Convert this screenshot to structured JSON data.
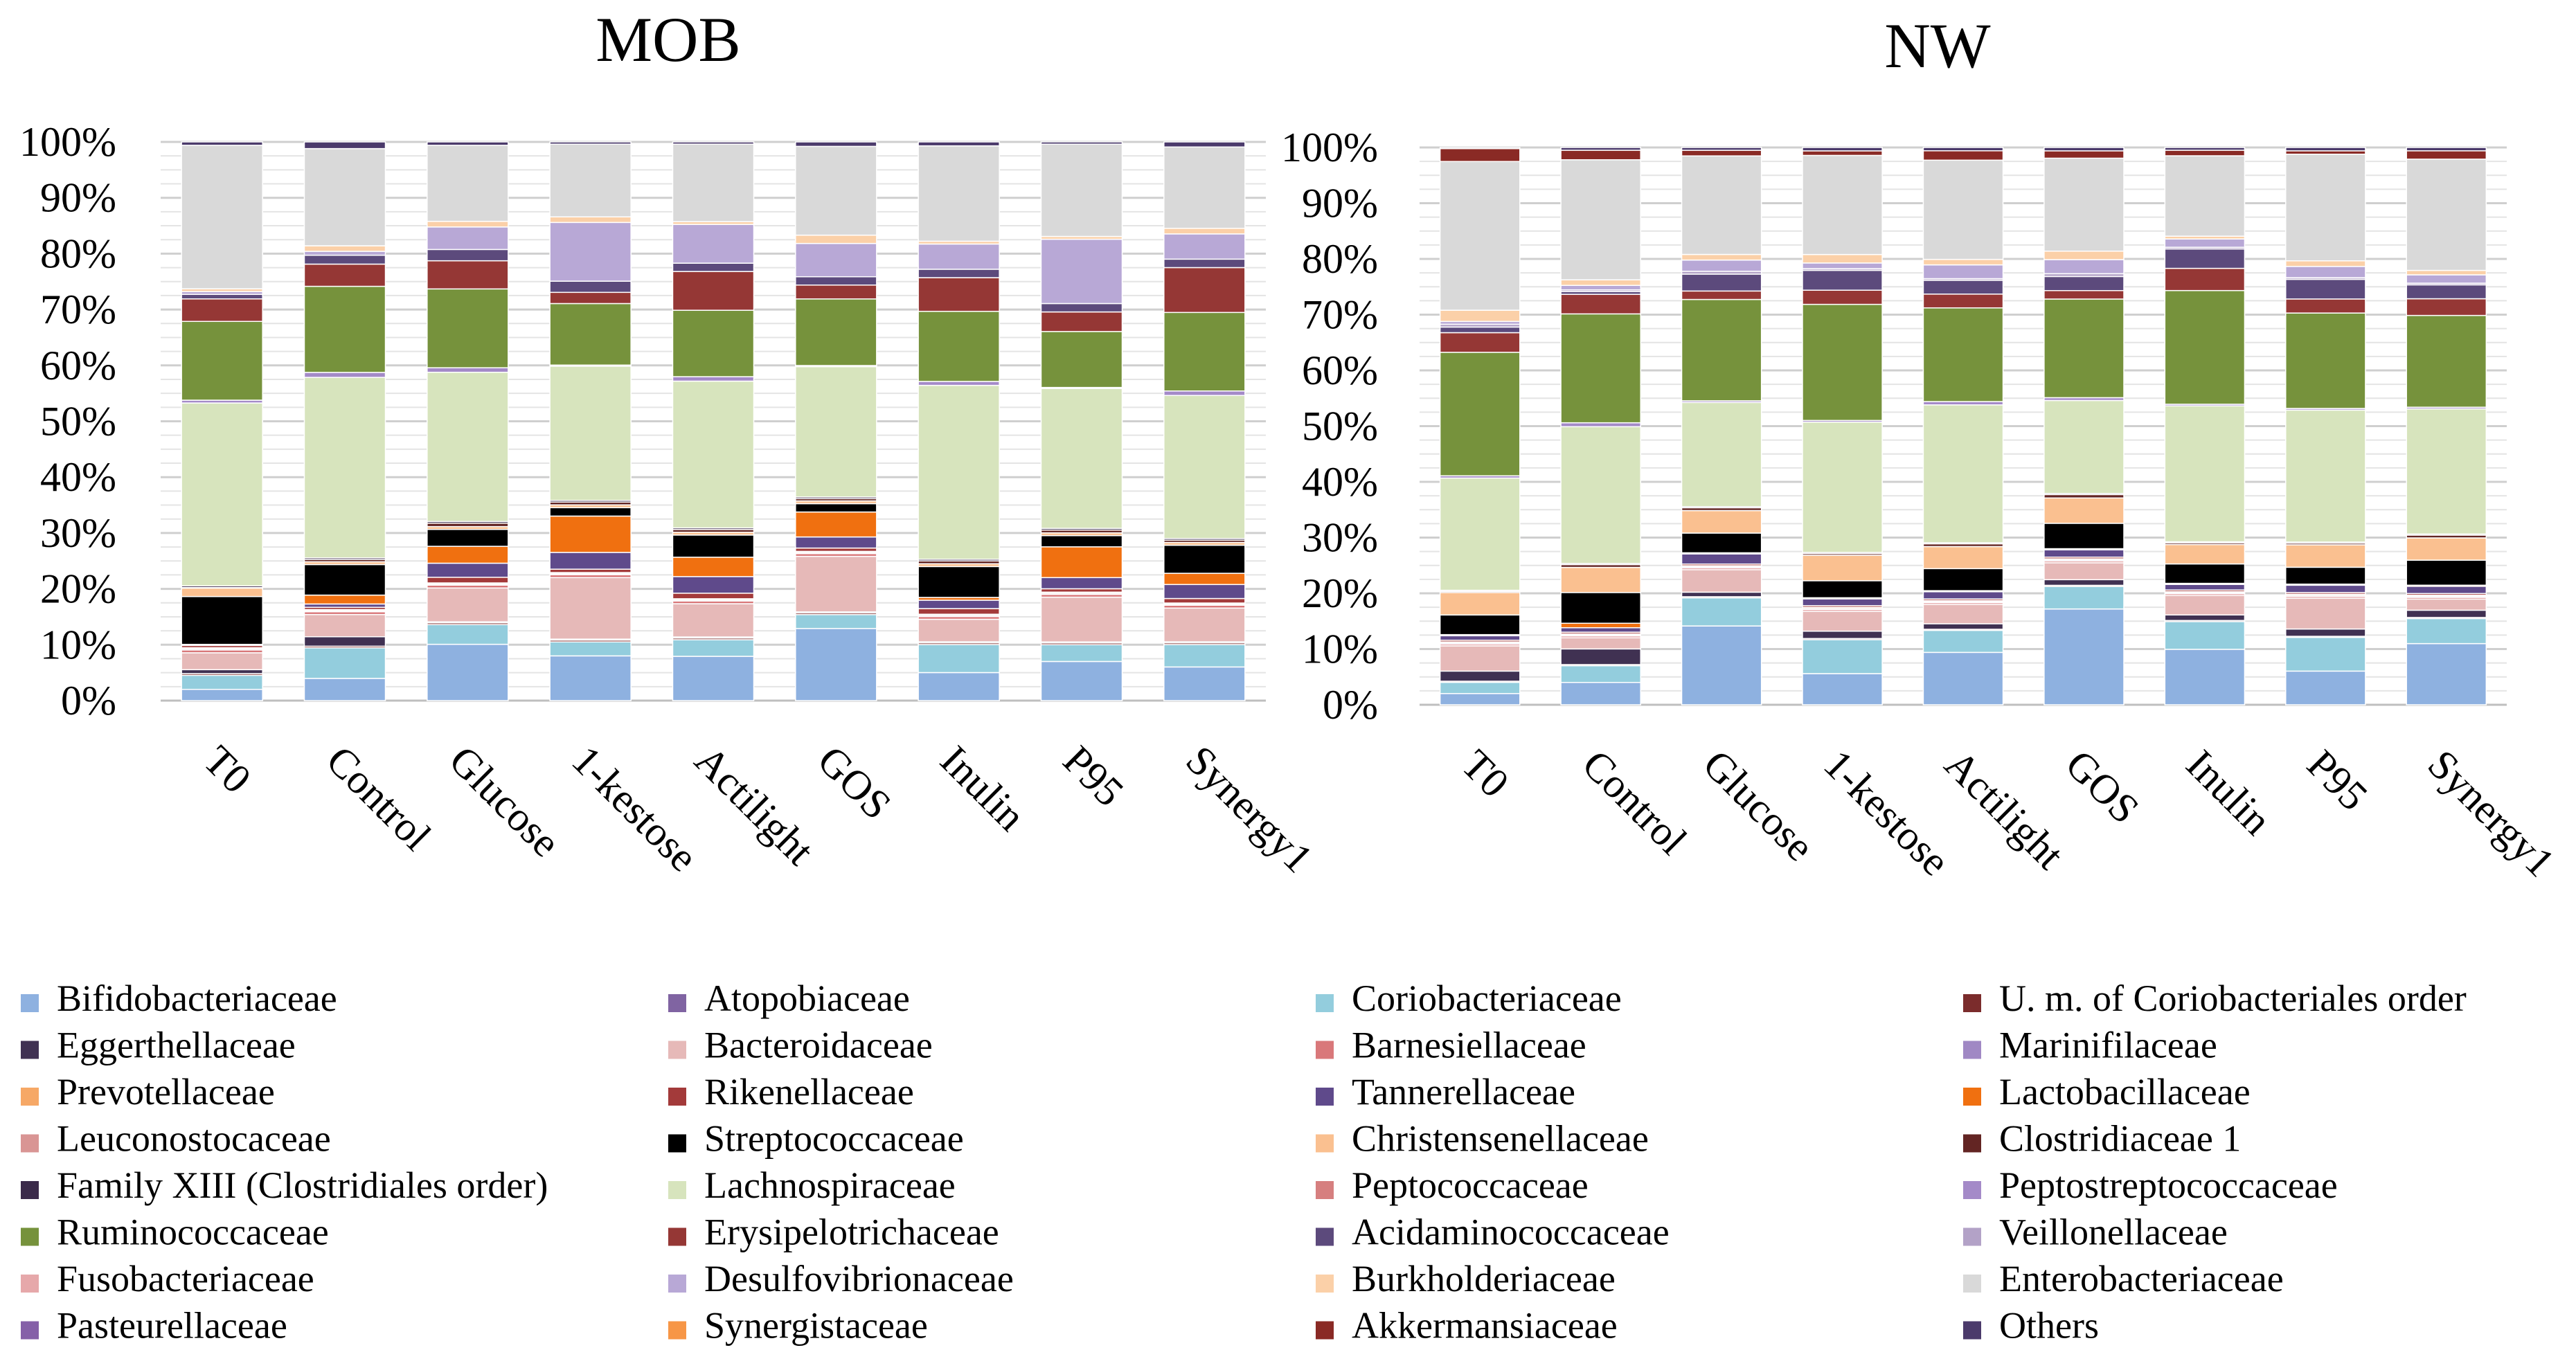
{
  "chart_data": [
    {
      "type": "bar",
      "stacked": true,
      "percent": true,
      "title": "MOB",
      "categories": [
        "T0",
        "Control",
        "Glucose",
        "1-kestose",
        "Actilight",
        "GOS",
        "Inulin",
        "P95",
        "Synergy1"
      ],
      "y_ticks": [
        "0%",
        "10%",
        "20%",
        "30%",
        "40%",
        "50%",
        "60%",
        "70%",
        "80%",
        "90%",
        "100%"
      ],
      "ylim": [
        0,
        100
      ],
      "grid": true,
      "legend_position": "bottom",
      "series": [
        {
          "name": "Bifidobacteriaceae",
          "values": [
            2,
            4,
            10,
            8,
            8,
            13,
            5,
            7,
            6
          ]
        },
        {
          "name": "Atopobiaceae",
          "values": [
            0,
            0,
            0,
            0,
            0,
            0,
            0,
            0,
            0
          ]
        },
        {
          "name": "Coriobacteriaceae",
          "values": [
            2.5,
            5.5,
            3.5,
            2.5,
            3,
            2.5,
            5,
            3,
            4
          ]
        },
        {
          "name": "U. m. of Coriobacteriales order",
          "values": [
            0.3,
            0.3,
            0.3,
            0.3,
            0.3,
            0.3,
            0.3,
            0.3,
            0.3
          ]
        },
        {
          "name": "Eggerthellaceae",
          "values": [
            0.7,
            1.7,
            0.2,
            0.2,
            0.2,
            0.2,
            0.2,
            0.2,
            0.2
          ]
        },
        {
          "name": "Bacteroidaceae",
          "values": [
            3,
            4,
            6,
            11,
            6,
            10,
            4,
            8,
            6
          ]
        },
        {
          "name": "Barnesiellaceae",
          "values": [
            0.5,
            0.5,
            0.5,
            0.5,
            0.5,
            0.5,
            0.5,
            0.5,
            0.5
          ]
        },
        {
          "name": "Marinifilaceae",
          "values": [
            0.2,
            0.2,
            0.2,
            0.2,
            0.2,
            0.2,
            0.2,
            0.2,
            0.2
          ]
        },
        {
          "name": "Prevotellaceae",
          "values": [
            0.2,
            0.2,
            0.2,
            0.2,
            0.2,
            0.2,
            0.2,
            0.2,
            0.2
          ]
        },
        {
          "name": "Rikenellaceae",
          "values": [
            0.4,
            0.4,
            1,
            0.6,
            1,
            0.6,
            1,
            0.6,
            0.8
          ]
        },
        {
          "name": "Tannerellaceae",
          "values": [
            0.2,
            0.6,
            2.5,
            3,
            3,
            2,
            1.5,
            2,
            2.5
          ]
        },
        {
          "name": "Lactobacillaceae",
          "values": [
            0,
            1.6,
            3,
            6.5,
            3.5,
            4.5,
            0.5,
            5.5,
            2
          ]
        },
        {
          "name": "Leuconostocaceae",
          "values": [
            0,
            0,
            0,
            0,
            0,
            0,
            0,
            0,
            0
          ]
        },
        {
          "name": "Streptococcaceae",
          "values": [
            8.5,
            5.5,
            3,
            1.5,
            4,
            1.5,
            5.5,
            2,
            5
          ]
        },
        {
          "name": "Christensenellaceae",
          "values": [
            1.5,
            0.5,
            0.5,
            0.5,
            0.5,
            0.5,
            0.5,
            0.5,
            0.5
          ]
        },
        {
          "name": "Clostridiaceae 1",
          "values": [
            0.1,
            0.4,
            0.6,
            0.5,
            0.5,
            0.4,
            0.5,
            0.5,
            0.4
          ]
        },
        {
          "name": "Family XIII (Clostridiales order)",
          "values": [
            0.3,
            0.3,
            0.3,
            0.3,
            0.3,
            0.3,
            0.3,
            0.3,
            0.3
          ]
        },
        {
          "name": "Lachnospiraceae",
          "values": [
            32.5,
            32.5,
            26.5,
            24,
            26.5,
            23.5,
            31,
            25,
            25.5
          ]
        },
        {
          "name": "Peptococcaceae",
          "values": [
            0,
            0,
            0,
            0,
            0,
            0,
            0,
            0,
            0
          ]
        },
        {
          "name": "Peptostreptococcaceae",
          "values": [
            0.5,
            0.9,
            0.8,
            0.2,
            0.8,
            0.2,
            0.7,
            0.2,
            0.8
          ]
        },
        {
          "name": "Ruminococcaceae",
          "values": [
            14,
            15.5,
            14,
            11,
            12,
            12,
            12.5,
            10,
            14
          ]
        },
        {
          "name": "Erysipelotrichaceae",
          "values": [
            4,
            4,
            5,
            2,
            7,
            2.5,
            6,
            3.5,
            8
          ]
        },
        {
          "name": "Acidaminococcaceae",
          "values": [
            0.8,
            1.6,
            2,
            2,
            1.5,
            1.5,
            1.5,
            1.5,
            1.5
          ]
        },
        {
          "name": "Veillonellaceae",
          "values": [
            0,
            0,
            0,
            0,
            0,
            0,
            0,
            0,
            0
          ]
        },
        {
          "name": "Fusobacteriaceae",
          "values": [
            0,
            0,
            0,
            0,
            0,
            0,
            0,
            0,
            0
          ]
        },
        {
          "name": "Desulfovibrionaceae",
          "values": [
            0.5,
            0.7,
            4,
            10.5,
            7,
            6,
            4.5,
            11.5,
            4.5
          ]
        },
        {
          "name": "Burkholderiaceae",
          "values": [
            0.5,
            1,
            1,
            1,
            0.5,
            1.5,
            0.5,
            0.5,
            1
          ]
        },
        {
          "name": "Enterobacteriaceae",
          "values": [
            25.5,
            17.5,
            13.5,
            13,
            14,
            16,
            17,
            16.5,
            14.5
          ]
        },
        {
          "name": "Pasteurellaceae",
          "values": [
            0,
            0,
            0,
            0,
            0,
            0,
            0,
            0,
            0
          ]
        },
        {
          "name": "Synergistaceae",
          "values": [
            0,
            0,
            0,
            0,
            0,
            0,
            0,
            0,
            0
          ]
        },
        {
          "name": "Akkermansiaceae",
          "values": [
            0,
            0,
            0,
            0,
            0,
            0,
            0,
            0,
            0
          ]
        },
        {
          "name": "Others",
          "values": [
            0.6,
            1.2,
            0.6,
            0.4,
            0.4,
            0.8,
            0.7,
            0.4,
            0.9
          ]
        }
      ]
    },
    {
      "type": "bar",
      "stacked": true,
      "percent": true,
      "title": "NW",
      "categories": [
        "T0",
        "Control",
        "Glucose",
        "1-kestose",
        "Actilight",
        "GOS",
        "Inulin",
        "P95",
        "Synergy1"
      ],
      "y_ticks": [
        "0%",
        "10%",
        "20%",
        "30%",
        "40%",
        "50%",
        "60%",
        "70%",
        "80%",
        "90%",
        "100%"
      ],
      "ylim": [
        0,
        100
      ],
      "grid": true,
      "legend_position": "bottom",
      "series": [
        {
          "name": "Bifidobacteriaceae",
          "values": [
            2,
            4,
            14,
            5.5,
            9.5,
            17,
            10,
            6,
            11
          ]
        },
        {
          "name": "Atopobiaceae",
          "values": [
            0,
            0,
            0,
            0,
            0,
            0,
            0,
            0,
            0
          ]
        },
        {
          "name": "Coriobacteriaceae",
          "values": [
            2,
            3,
            5,
            6,
            4,
            4,
            5,
            6,
            4.5
          ]
        },
        {
          "name": "U. m. of Coriobacteriales order",
          "values": [
            0.2,
            0.2,
            0.2,
            0.2,
            0.2,
            0.2,
            0.2,
            0.2,
            0.2
          ]
        },
        {
          "name": "Eggerthellaceae",
          "values": [
            1.8,
            2.8,
            0.8,
            1.3,
            1,
            1,
            1,
            1.3,
            1.3
          ]
        },
        {
          "name": "Bacteroidaceae",
          "values": [
            4.5,
            2,
            4,
            3.5,
            3.5,
            3,
            3.5,
            5.5,
            2
          ]
        },
        {
          "name": "Barnesiellaceae",
          "values": [
            0.3,
            0.3,
            0.3,
            0.3,
            0.3,
            0.3,
            0.3,
            0.3,
            0.3
          ]
        },
        {
          "name": "Marinifilaceae",
          "values": [
            0.2,
            0.2,
            0.2,
            0.2,
            0.2,
            0.2,
            0.2,
            0.2,
            0.2
          ]
        },
        {
          "name": "Prevotellaceae",
          "values": [
            0.2,
            0.2,
            0.2,
            0.2,
            0.2,
            0.2,
            0.2,
            0.2,
            0.2
          ]
        },
        {
          "name": "Rikenellaceae",
          "values": [
            0.3,
            0.3,
            0.3,
            0.3,
            0.3,
            0.3,
            0.3,
            0.3,
            0.3
          ]
        },
        {
          "name": "Tannerellaceae",
          "values": [
            0.8,
            0.8,
            1.8,
            1.2,
            1.3,
            1.3,
            1,
            1.3,
            1.3
          ]
        },
        {
          "name": "Lactobacillaceae",
          "values": [
            0.2,
            0.8,
            0.2,
            0.2,
            0.2,
            0.2,
            0.2,
            0.2,
            0.2
          ]
        },
        {
          "name": "Leuconostocaceae",
          "values": [
            0,
            0,
            0,
            0,
            0,
            0,
            0,
            0,
            0
          ]
        },
        {
          "name": "Streptococcaceae",
          "values": [
            3.5,
            5.5,
            3.5,
            3,
            4,
            4.5,
            3.5,
            3,
            4.5
          ]
        },
        {
          "name": "Christensenellaceae",
          "values": [
            4,
            4.5,
            4,
            4.5,
            4,
            4.5,
            3.5,
            4,
            4
          ]
        },
        {
          "name": "Clostridiaceae 1",
          "values": [
            0.2,
            0.5,
            0.5,
            0.3,
            0.5,
            0.6,
            0.3,
            0.3,
            0.5
          ]
        },
        {
          "name": "Family XIII (Clostridiales order)",
          "values": [
            0.2,
            0.2,
            0.2,
            0.2,
            0.2,
            0.2,
            0.2,
            0.2,
            0.2
          ]
        },
        {
          "name": "Lachnospiraceae",
          "values": [
            20,
            24.5,
            18.5,
            23,
            25,
            16.5,
            24.5,
            23.5,
            22.5
          ]
        },
        {
          "name": "Peptococcaceae",
          "values": [
            0,
            0,
            0,
            0,
            0,
            0,
            0,
            0,
            0
          ]
        },
        {
          "name": "Peptostreptococcaceae",
          "values": [
            0.4,
            0.7,
            0.3,
            0.3,
            0.6,
            0.5,
            0.3,
            0.3,
            0.3
          ]
        },
        {
          "name": "Ruminococcaceae",
          "values": [
            22,
            19.5,
            18,
            20.5,
            17,
            17.5,
            20.5,
            17,
            16.5
          ]
        },
        {
          "name": "Erysipelotrichaceae",
          "values": [
            3.5,
            3.5,
            1.5,
            2.5,
            2.5,
            1.5,
            4,
            2.5,
            3
          ]
        },
        {
          "name": "Acidaminococcaceae",
          "values": [
            1,
            0.5,
            3,
            3.5,
            2.5,
            2.5,
            3.5,
            3.5,
            2.5
          ]
        },
        {
          "name": "Veillonellaceae",
          "values": [
            0.5,
            0.3,
            0.5,
            0.3,
            0.3,
            0.5,
            0.3,
            0.3,
            0.3
          ]
        },
        {
          "name": "Fusobacteriaceae",
          "values": [
            0,
            0,
            0,
            0,
            0,
            0,
            0,
            0,
            0
          ]
        },
        {
          "name": "Desulfovibrionaceae",
          "values": [
            0.5,
            0.8,
            2,
            1,
            2.5,
            2.5,
            1.5,
            2,
            1.5
          ]
        },
        {
          "name": "Burkholderiaceae",
          "values": [
            2,
            1,
            1,
            1.5,
            1,
            1.5,
            0.5,
            1,
            0.8
          ]
        },
        {
          "name": "Enterobacteriaceae",
          "values": [
            26.5,
            21.5,
            17.5,
            17.5,
            18,
            16.5,
            14.5,
            19,
            20
          ]
        },
        {
          "name": "Pasteurellaceae",
          "values": [
            0,
            0,
            0,
            0,
            0,
            0,
            0,
            0,
            0
          ]
        },
        {
          "name": "Synergistaceae",
          "values": [
            0,
            0,
            0,
            0,
            0,
            0,
            0,
            0,
            0
          ]
        },
        {
          "name": "Akkermansiaceae",
          "values": [
            2.3,
            1.7,
            1,
            0.8,
            1.7,
            1.3,
            1,
            0.6,
            1.5
          ]
        },
        {
          "name": "Others",
          "values": [
            0.2,
            0.5,
            0.5,
            0.6,
            0.6,
            0.6,
            0.5,
            0.6,
            0.6
          ]
        }
      ]
    }
  ],
  "colors": {
    "Bifidobacteriaceae": "#8eb1e0",
    "Atopobiaceae": "#8064a2",
    "Coriobacteriaceae": "#93cddd",
    "U. m. of Coriobacteriales order": "#7b2c2c",
    "Eggerthellaceae": "#403152",
    "Bacteroidaceae": "#e6b9b8",
    "Barnesiellaceae": "#d9787a",
    "Marinifilaceae": "#a088c4",
    "Prevotellaceae": "#f6a866",
    "Rikenellaceae": "#a33a3a",
    "Tannerellaceae": "#5f4a8b",
    "Lactobacillaceae": "#f07010",
    "Leuconostocaceae": "#d99594",
    "Streptococcaceae": "#000000",
    "Christensenellaceae": "#fac090",
    "Clostridiaceae 1": "#632523",
    "Family XIII (Clostridiales order)": "#3b2a4a",
    "Lachnospiraceae": "#d7e4bd",
    "Peptococcaceae": "#d67f7f",
    "Peptostreptococcaceae": "#a48ac8",
    "Ruminococcaceae": "#76923c",
    "Erysipelotrichaceae": "#953735",
    "Acidaminococcaceae": "#5c4a7c",
    "Veillonellaceae": "#b3a2c7",
    "Fusobacteriaceae": "#e6a8aa",
    "Desulfovibrionaceae": "#b8a8d6",
    "Burkholderiaceae": "#fbd0a8",
    "Enterobacteriaceae": "#d9d9d9",
    "Pasteurellaceae": "#8560a8",
    "Synergistaceae": "#f79646",
    "Akkermansiaceae": "#8a2a25",
    "Others": "#4b3a6b"
  }
}
